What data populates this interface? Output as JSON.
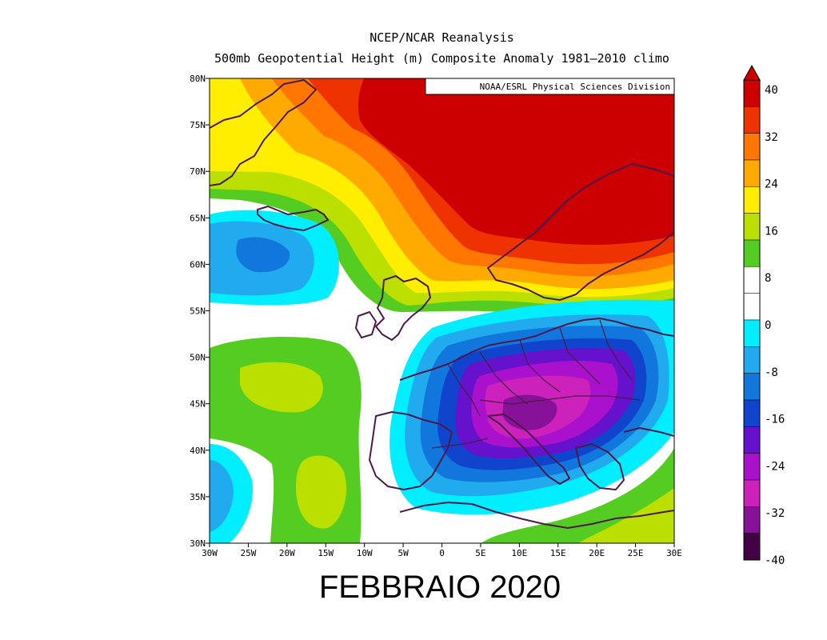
{
  "header": {
    "title_line1": "NCEP/NCAR Reanalysis",
    "title_line2": "500mb Geopotential Height (m) Composite Anomaly 1981–2010 climo"
  },
  "credit": "NOAA/ESRL Physical Sciences Division",
  "caption": "FEBBRAIO 2020",
  "map": {
    "lon_range": [
      -30,
      30
    ],
    "lat_range": [
      30,
      80
    ],
    "lon_ticks": [
      "30W",
      "25W",
      "20W",
      "15W",
      "10W",
      "5W",
      "0",
      "5E",
      "10E",
      "15E",
      "20E",
      "25E",
      "30E"
    ],
    "lat_ticks": [
      "80N",
      "75N",
      "70N",
      "65N",
      "60N",
      "55N",
      "50N",
      "45N",
      "40N",
      "35N",
      "30N"
    ],
    "coastline_color": "#4a1a4a"
  },
  "colorbar": {
    "labels": [
      "40",
      "32",
      "24",
      "16",
      "8",
      "0",
      "-8",
      "-16",
      "-24",
      "-32",
      "-40"
    ],
    "colors": [
      "#cc0000",
      "#ee3300",
      "#ff7700",
      "#ffaa00",
      "#ffee00",
      "#bbe000",
      "#55cc22",
      "#ffffff",
      "#ffffff",
      "#00eeff",
      "#22aaee",
      "#1177dd",
      "#1144cc",
      "#6611cc",
      "#aa11cc",
      "#cc22bb",
      "#881199",
      "#440044"
    ]
  },
  "chart_data": {
    "type": "heatmap",
    "title": "500mb Geopotential Height (m) Composite Anomaly 1981–2010 climo",
    "variable": "500mb geopotential height anomaly",
    "units": "m",
    "period": "FEBBRAIO 2020",
    "xlim": [
      -30,
      30
    ],
    "ylim": [
      30,
      80
    ],
    "color_scale": [
      40,
      32,
      24,
      16,
      8,
      0,
      -8,
      -16,
      -24,
      -32,
      -40
    ],
    "anomaly_centers": [
      {
        "lon": 15,
        "lat": 72,
        "value": 40
      },
      {
        "lon": 12,
        "lat": 45,
        "value": -32
      },
      {
        "lon": -23,
        "lat": 61,
        "value": -16
      },
      {
        "lon": -17,
        "lat": 48,
        "value": 16
      },
      {
        "lon": -13,
        "lat": 36,
        "value": 16
      }
    ]
  }
}
